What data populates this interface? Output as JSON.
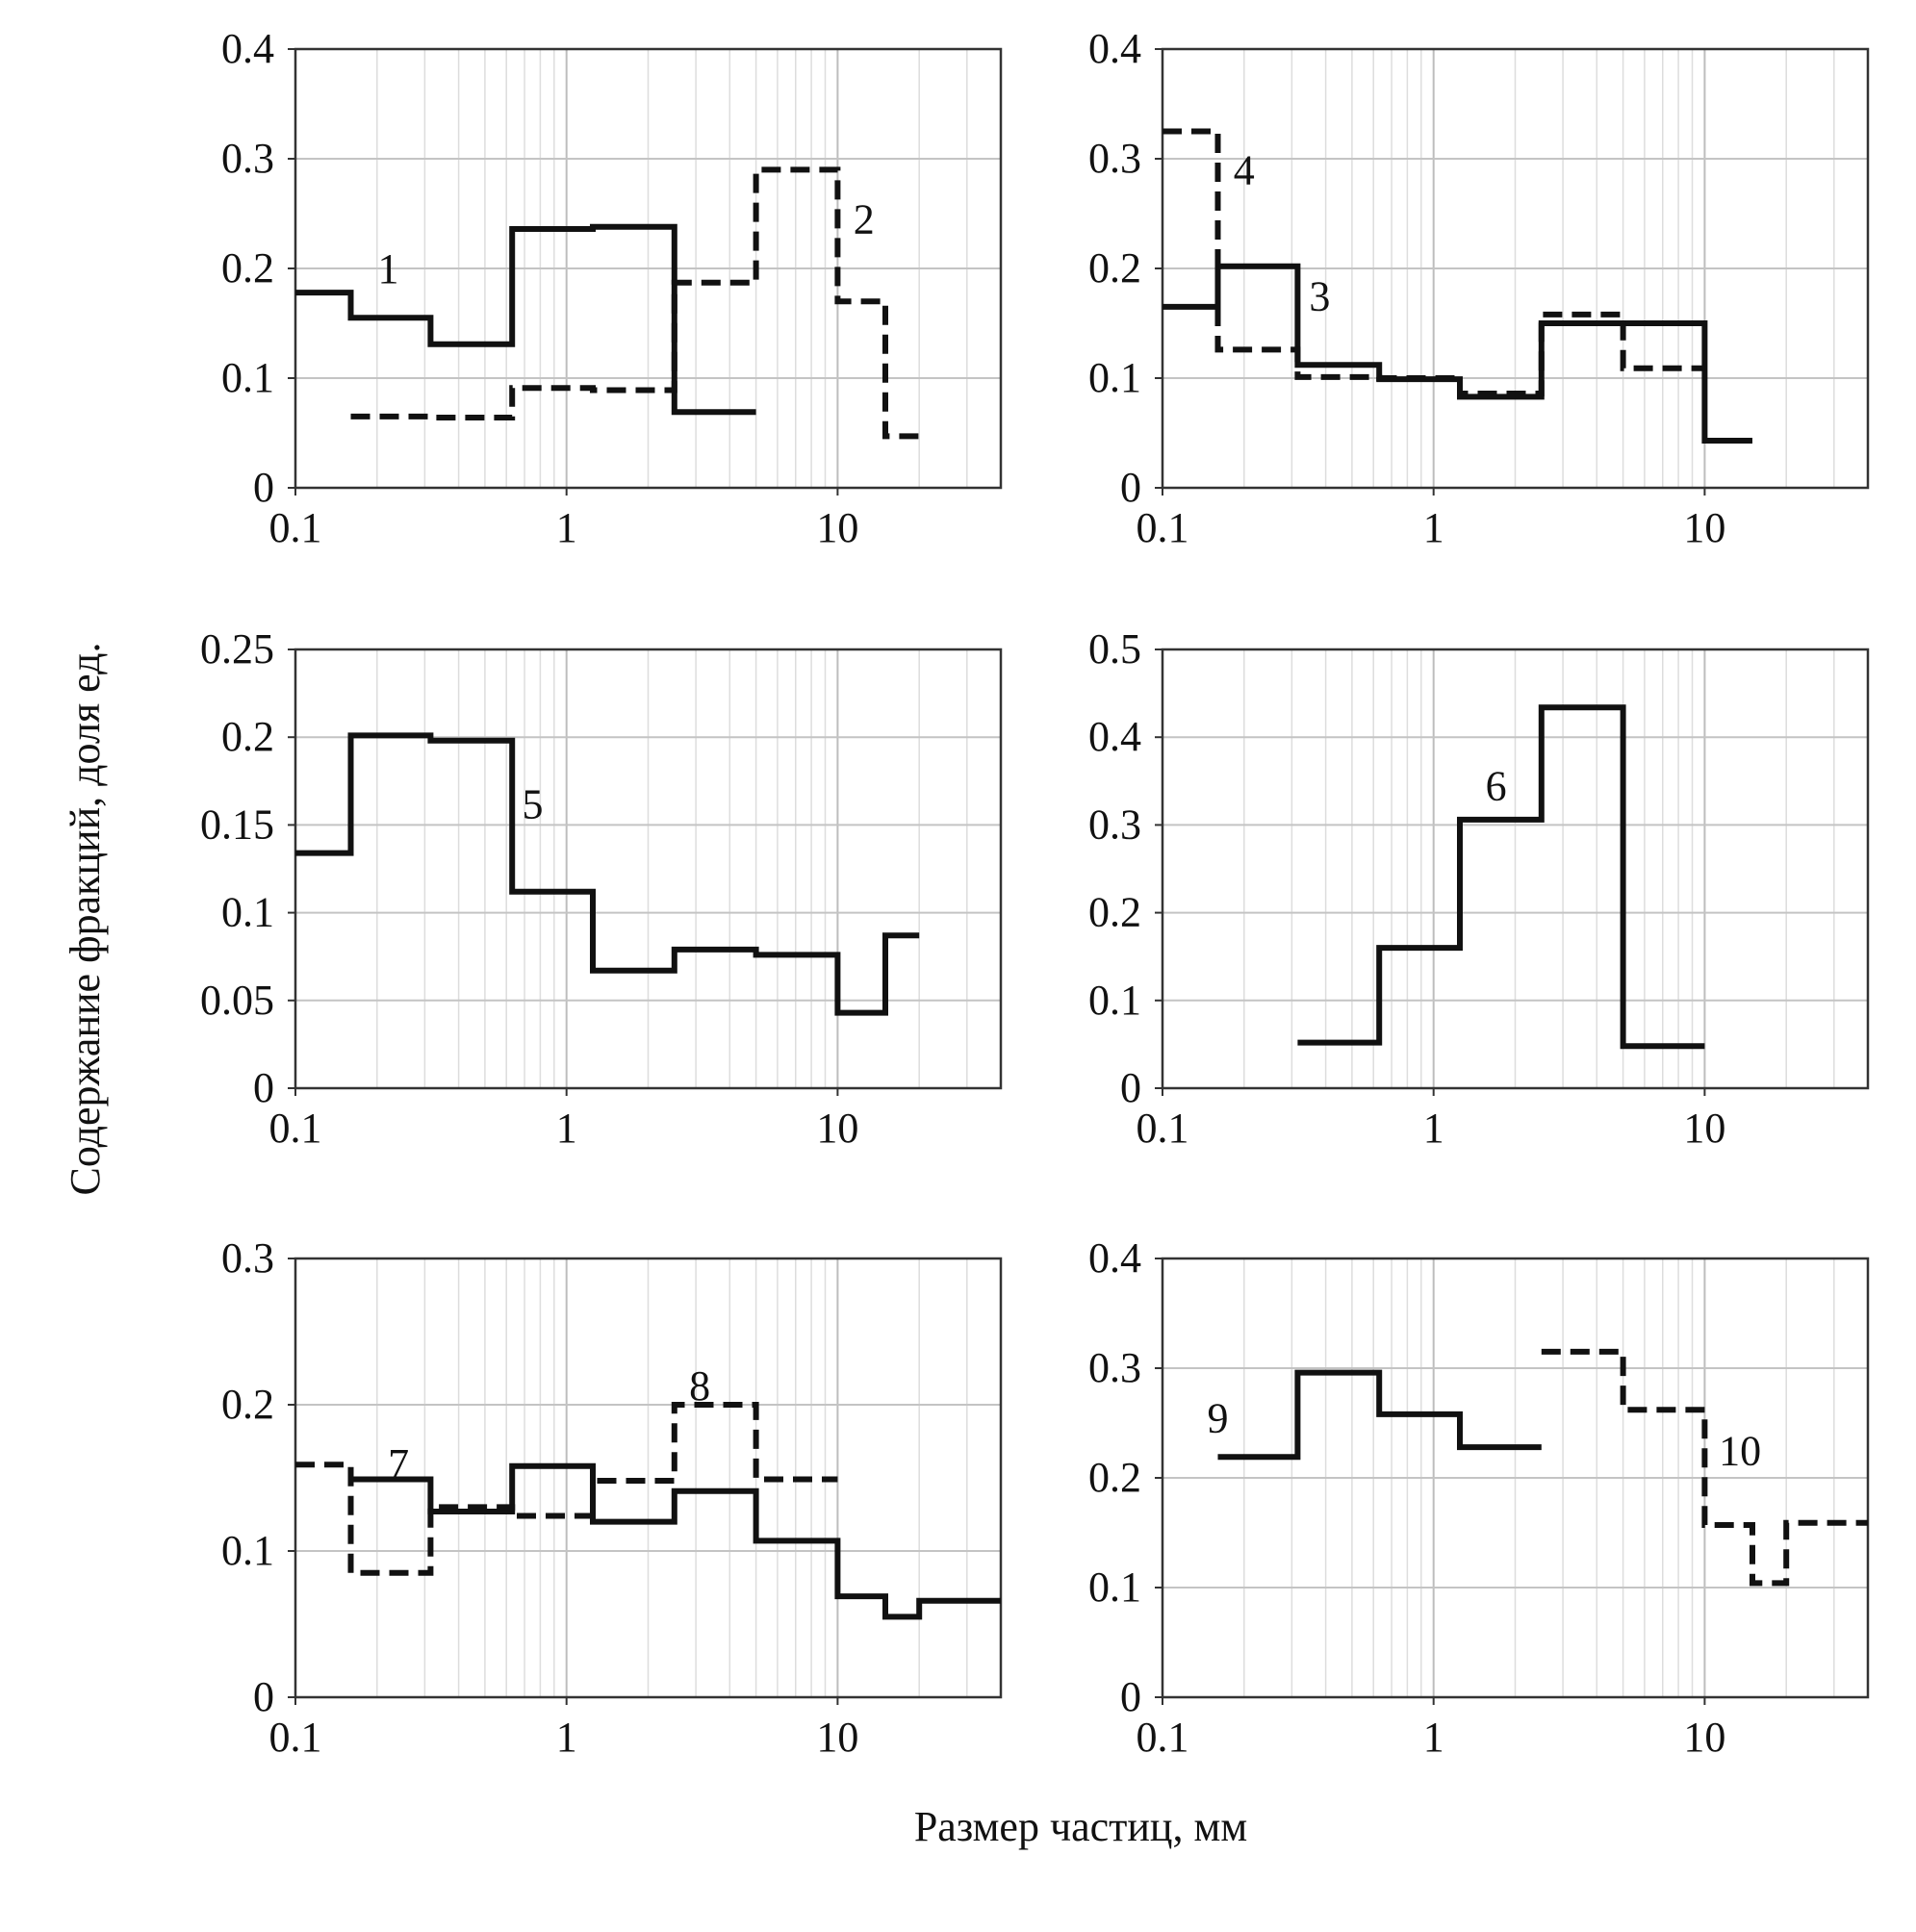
{
  "figure": {
    "ylabel": "Содержание фракций, доля ед.",
    "xlabel": "Размер частиц, мм"
  },
  "chart_data": [
    {
      "type": "line",
      "step": true,
      "x_scale": "log",
      "xlim": [
        0.1,
        40
      ],
      "ylim": [
        0,
        0.4
      ],
      "x_ticks": [
        "0.1",
        "1",
        "10"
      ],
      "y_ticks": [
        "0",
        "0.1",
        "0.2",
        "0.3",
        "0.4"
      ],
      "grid": true,
      "series": [
        {
          "name": "1",
          "style": "solid",
          "label_at": [
            0.22,
            0.2
          ],
          "edges": [
            0.1,
            0.16,
            0.315,
            0.63,
            1.25,
            2.5,
            5
          ],
          "values": [
            0.178,
            0.155,
            0.131,
            0.236,
            0.238,
            0.069
          ]
        },
        {
          "name": "2",
          "style": "dashed",
          "label_at": [
            12.5,
            0.245
          ],
          "edges": [
            0.16,
            0.315,
            0.63,
            1.25,
            2.5,
            5,
            10,
            15,
            20
          ],
          "values": [
            0.065,
            0.064,
            0.091,
            0.089,
            0.187,
            0.29,
            0.17,
            0.047
          ]
        }
      ]
    },
    {
      "type": "line",
      "step": true,
      "x_scale": "log",
      "xlim": [
        0.1,
        40
      ],
      "ylim": [
        0,
        0.4
      ],
      "x_ticks": [
        "0.1",
        "1",
        "10"
      ],
      "y_ticks": [
        "0",
        "0.1",
        "0.2",
        "0.3",
        "0.4"
      ],
      "grid": true,
      "series": [
        {
          "name": "3",
          "style": "solid",
          "label_at": [
            0.38,
            0.175
          ],
          "edges": [
            0.1,
            0.16,
            0.315,
            0.63,
            1.25,
            2.5,
            5,
            10,
            15
          ],
          "values": [
            0.165,
            0.202,
            0.112,
            0.099,
            0.083,
            0.15,
            0.15,
            0.043
          ]
        },
        {
          "name": "4",
          "style": "dashed",
          "label_at": [
            0.2,
            0.29
          ],
          "edges": [
            0.1,
            0.16,
            0.315,
            0.63,
            1.25,
            2.5,
            5,
            10
          ],
          "values": [
            0.325,
            0.126,
            0.101,
            0.1,
            0.086,
            0.158,
            0.109
          ]
        }
      ]
    },
    {
      "type": "line",
      "step": true,
      "x_scale": "log",
      "xlim": [
        0.1,
        40
      ],
      "ylim": [
        0,
        0.25
      ],
      "x_ticks": [
        "0.1",
        "1",
        "10"
      ],
      "y_ticks": [
        "0",
        "0.05",
        "0.1",
        "0.15",
        "0.2",
        "0.25"
      ],
      "grid": true,
      "series": [
        {
          "name": "5",
          "style": "solid",
          "label_at": [
            0.75,
            0.162
          ],
          "edges": [
            0.1,
            0.16,
            0.315,
            0.63,
            1.25,
            2.5,
            5,
            10,
            15,
            20
          ],
          "values": [
            0.134,
            0.201,
            0.198,
            0.112,
            0.067,
            0.079,
            0.076,
            0.043,
            0.087
          ]
        }
      ]
    },
    {
      "type": "line",
      "step": true,
      "x_scale": "log",
      "xlim": [
        0.1,
        40
      ],
      "ylim": [
        0,
        0.5
      ],
      "x_ticks": [
        "0.1",
        "1",
        "10"
      ],
      "y_ticks": [
        "0",
        "0.1",
        "0.2",
        "0.3",
        "0.4",
        "0.5"
      ],
      "grid": true,
      "series": [
        {
          "name": "6",
          "style": "solid",
          "label_at": [
            1.7,
            0.345
          ],
          "edges": [
            0.315,
            0.63,
            1.25,
            2.5,
            5,
            10
          ],
          "values": [
            0.052,
            0.16,
            0.306,
            0.434,
            0.048
          ]
        }
      ]
    },
    {
      "type": "line",
      "step": true,
      "x_scale": "log",
      "xlim": [
        0.1,
        40
      ],
      "ylim": [
        0,
        0.3
      ],
      "x_ticks": [
        "0.1",
        "1",
        "10"
      ],
      "y_ticks": [
        "0",
        "0.1",
        "0.2",
        "0.3"
      ],
      "grid": true,
      "series": [
        {
          "name": "7",
          "style": "solid",
          "label_at": [
            0.24,
            0.16
          ],
          "edges": [
            0.16,
            0.315,
            0.63,
            1.25,
            2.5,
            5,
            10,
            15,
            20,
            40
          ],
          "values": [
            0.149,
            0.127,
            0.158,
            0.12,
            0.141,
            0.107,
            0.069,
            0.055,
            0.066
          ]
        },
        {
          "name": "8",
          "style": "dashed",
          "label_at": [
            3.1,
            0.213
          ],
          "edges": [
            0.1,
            0.16,
            0.315,
            0.63,
            1.25,
            2.5,
            5,
            10
          ],
          "values": [
            0.159,
            0.085,
            0.13,
            0.124,
            0.148,
            0.2,
            0.149
          ]
        }
      ]
    },
    {
      "type": "line",
      "step": true,
      "x_scale": "log",
      "xlim": [
        0.1,
        40
      ],
      "ylim": [
        0,
        0.4
      ],
      "x_ticks": [
        "0.1",
        "1",
        "10"
      ],
      "y_ticks": [
        "0",
        "0.1",
        "0.2",
        "0.3",
        "0.4"
      ],
      "grid": true,
      "series": [
        {
          "name": "9",
          "style": "solid",
          "label_at": [
            0.16,
            0.255
          ],
          "edges": [
            0.16,
            0.315,
            0.63,
            1.25,
            2.5
          ],
          "values": [
            0.219,
            0.296,
            0.258,
            0.228
          ]
        },
        {
          "name": "10",
          "style": "dashed",
          "label_at": [
            13.5,
            0.225
          ],
          "edges": [
            2.5,
            5,
            10,
            15,
            20,
            40
          ],
          "values": [
            0.315,
            0.262,
            0.157,
            0.104,
            0.159
          ]
        }
      ]
    }
  ]
}
